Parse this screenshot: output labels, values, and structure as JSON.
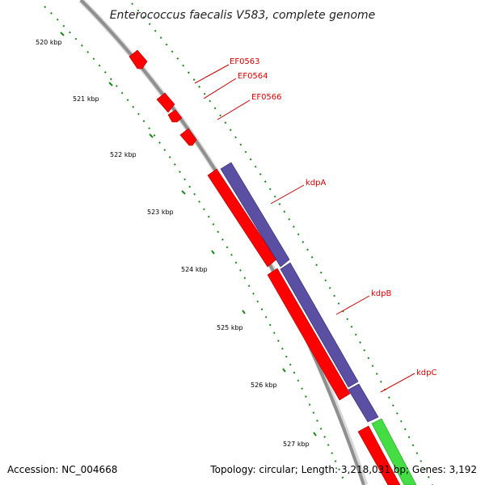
{
  "title": "Enterococcus faecalis V583, complete genome",
  "footer": {
    "accession": "Accession: NC_004668",
    "topology": "Topology: circular; Length: 3,218,031 bp; Genes: 3,192"
  },
  "scale": {
    "labels": [
      "520 kbp",
      "521 kbp",
      "522 kbp",
      "523 kbp",
      "524 kbp",
      "525 kbp",
      "526 kbp",
      "527 kbp"
    ]
  },
  "genes": [
    {
      "name": "EF0563",
      "color": "#dd0000"
    },
    {
      "name": "EF0564",
      "color": "#dd0000"
    },
    {
      "name": "EF0566",
      "color": "#dd0000"
    },
    {
      "name": "kdpA",
      "color": "#dd0000"
    },
    {
      "name": "kdpB",
      "color": "#dd0000"
    },
    {
      "name": "kdpC",
      "color": "#dd0000"
    }
  ],
  "colors": {
    "backbone": "#8f8f8f",
    "forward_feature": "#ff0000",
    "purple_track": "#5b4fa3",
    "green_track": "#44dd44",
    "tick_dots": "#1a8a1a",
    "label_text": "#cc0000"
  }
}
